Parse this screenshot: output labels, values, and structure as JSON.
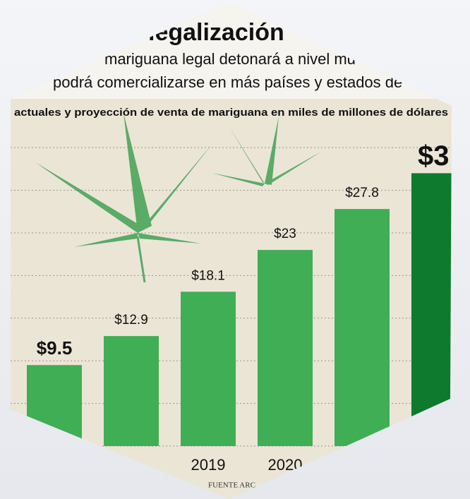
{
  "chart_data": {
    "type": "bar",
    "title": "legalización",
    "subtitle": [
      "mariguana legal detonará a nivel mu",
      "podrá comercializarse en más países y estados de"
    ],
    "description": "actuales y proyección de venta de mariguana en miles de millones de dólares",
    "source": "FUENTE ARC",
    "categories": [
      null,
      null,
      "2019",
      "2020",
      null,
      null
    ],
    "values": [
      9.5,
      12.9,
      18.1,
      23,
      27.8,
      32
    ],
    "value_labels": [
      "$9.5",
      "$12.9",
      "$18.1",
      "$23",
      "$27.8",
      null
    ],
    "annotations": [
      {
        "text": "$3"
      }
    ],
    "colors": [
      "#3fae55",
      "#3fae55",
      "#3fae55",
      "#3fae55",
      "#3fae55",
      "#0d7a2e"
    ],
    "ylim": [
      0,
      37
    ],
    "yticks": [
      0,
      5,
      10,
      15,
      20,
      25,
      30,
      35
    ],
    "grid": true
  }
}
